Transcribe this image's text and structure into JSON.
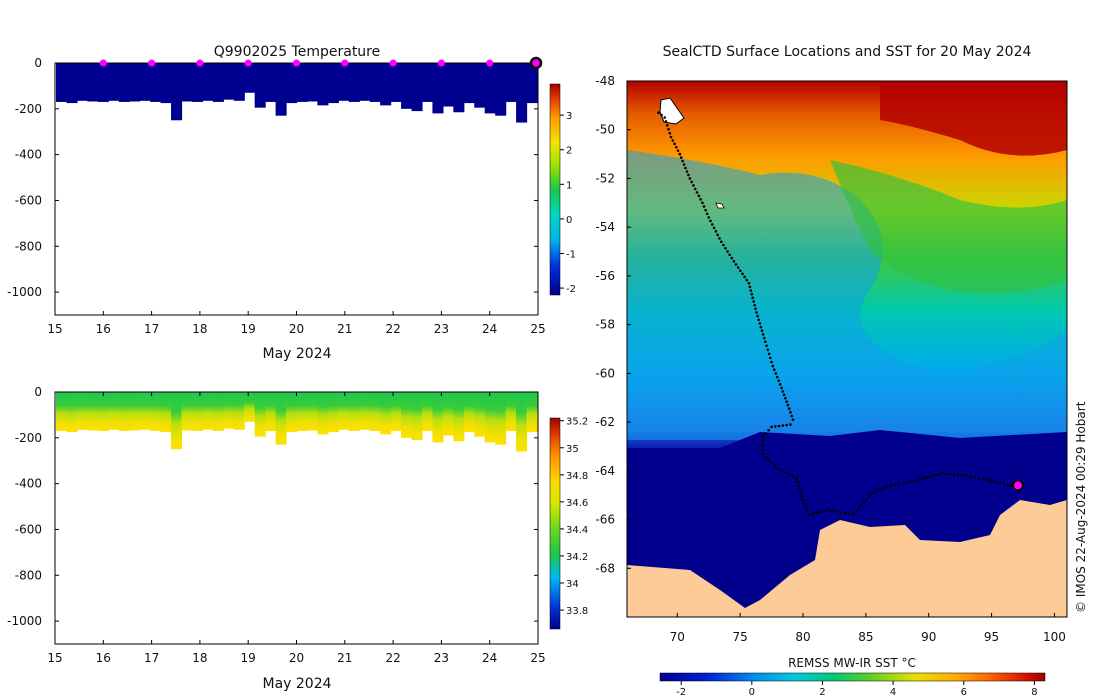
{
  "chart_data": [
    {
      "id": "temperature-section",
      "type": "heatmap",
      "title": "Q9902025  Temperature",
      "xlabel": "May 2024",
      "ylabel": "",
      "xlim": [
        15,
        25
      ],
      "ylim": [
        -1100,
        0
      ],
      "x_ticks": [
        15,
        16,
        17,
        18,
        19,
        20,
        21,
        22,
        23,
        24,
        25
      ],
      "y_ticks": [
        0,
        -200,
        -400,
        -600,
        -800,
        -1000
      ],
      "colorbar": {
        "range": [
          -2.2,
          3.9
        ],
        "ticks": [
          3,
          2,
          1,
          0,
          -1,
          -2
        ]
      },
      "profile_markers_day": [
        16,
        17,
        18,
        19,
        20,
        21,
        22,
        23,
        24
      ],
      "current_marker_day": 25,
      "max_depths_approx": [
        -170,
        -175,
        -165,
        -168,
        -170,
        -165,
        -170,
        -168,
        -165,
        -170,
        -175,
        -250,
        -168,
        -170,
        -165,
        -170,
        -160,
        -165,
        -130,
        -195,
        -170,
        -230,
        -175,
        -170,
        -168,
        -185,
        -175,
        -165,
        -170,
        -165,
        -170,
        -185,
        -170,
        -200,
        -210,
        -170,
        -220,
        -190,
        -215,
        -175,
        -195,
        -220,
        -230,
        -170,
        -260,
        -175
      ]
    },
    {
      "id": "salinity-section",
      "type": "heatmap",
      "title": "",
      "xlabel": "May 2024",
      "ylabel": "",
      "xlim": [
        15,
        25
      ],
      "ylim": [
        -1100,
        0
      ],
      "x_ticks": [
        15,
        16,
        17,
        18,
        19,
        20,
        21,
        22,
        23,
        24,
        25
      ],
      "y_ticks": [
        0,
        -200,
        -400,
        -600,
        -800,
        -1000
      ],
      "colorbar": {
        "range": [
          33.66,
          35.22
        ],
        "ticks": [
          35.2,
          35,
          34.8,
          34.6,
          34.4,
          34.2,
          34,
          33.8
        ]
      },
      "max_depths_approx": [
        -170,
        -175,
        -165,
        -168,
        -170,
        -165,
        -170,
        -168,
        -165,
        -170,
        -175,
        -250,
        -168,
        -170,
        -165,
        -170,
        -160,
        -165,
        -130,
        -195,
        -170,
        -230,
        -175,
        -170,
        -168,
        -185,
        -175,
        -165,
        -170,
        -165,
        -170,
        -185,
        -170,
        -200,
        -210,
        -170,
        -220,
        -190,
        -215,
        -175,
        -195,
        -220,
        -230,
        -170,
        -260,
        -175
      ]
    },
    {
      "id": "sst-map",
      "type": "heatmap",
      "title": "SealCTD Surface Locations and SST for 20 May 2024",
      "xlabel": "",
      "ylabel": "",
      "xlim": [
        66,
        101
      ],
      "ylim": [
        -70,
        -48
      ],
      "x_ticks": [
        70,
        75,
        80,
        85,
        90,
        95,
        100
      ],
      "y_ticks": [
        -48,
        -50,
        -52,
        -54,
        -56,
        -58,
        -60,
        -62,
        -64,
        -66,
        -68
      ],
      "colorbar": {
        "label": "REMSS MW-IR SST °C",
        "range": [
          -2.6,
          8.3
        ],
        "ticks": [
          -2,
          0,
          2,
          4,
          6,
          8
        ]
      },
      "track_lonlat": [
        [
          68.5,
          -49.3
        ],
        [
          69,
          -49.5
        ],
        [
          69.5,
          -50.3
        ],
        [
          70.2,
          -51
        ],
        [
          71,
          -52
        ],
        [
          72,
          -53
        ],
        [
          72.5,
          -53.6
        ],
        [
          73.5,
          -54.6
        ],
        [
          74.5,
          -55.4
        ],
        [
          75.7,
          -56.3
        ],
        [
          76.3,
          -57.5
        ],
        [
          77,
          -58.7
        ],
        [
          77.6,
          -59.7
        ],
        [
          78.3,
          -60.6
        ],
        [
          78.8,
          -61.3
        ],
        [
          79.2,
          -61.9
        ],
        [
          79,
          -62.1
        ],
        [
          77.5,
          -62.2
        ],
        [
          76.8,
          -62.6
        ],
        [
          76.8,
          -63.3
        ],
        [
          78,
          -63.9
        ],
        [
          79.5,
          -64.3
        ],
        [
          80,
          -65.2
        ],
        [
          80.5,
          -65.8
        ],
        [
          82,
          -65.6
        ],
        [
          84,
          -65.8
        ],
        [
          85.5,
          -64.9
        ],
        [
          87,
          -64.6
        ],
        [
          89,
          -64.4
        ],
        [
          91,
          -64.1
        ],
        [
          93,
          -64.2
        ],
        [
          95,
          -64.4
        ],
        [
          96.3,
          -64.6
        ],
        [
          97.1,
          -64.6
        ]
      ],
      "current_position_lonlat": [
        97.1,
        -64.6
      ],
      "credit": "© IMOS 22-Aug-2024 00:29 Hobart"
    }
  ]
}
